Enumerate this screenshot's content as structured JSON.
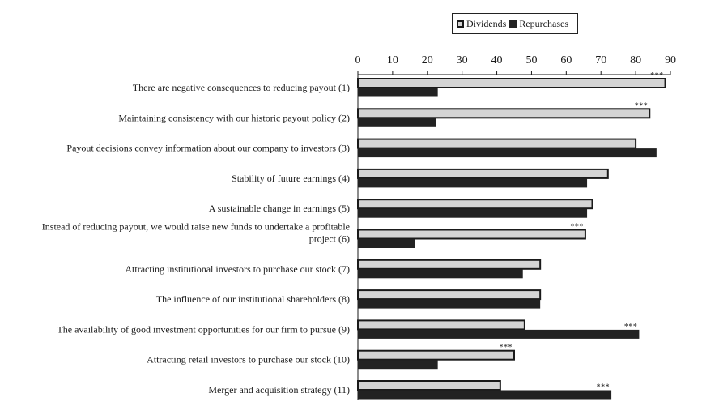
{
  "chart_data": {
    "type": "bar",
    "orientation": "horizontal",
    "xlim": [
      0,
      90
    ],
    "xticks": [
      0,
      10,
      20,
      30,
      40,
      50,
      60,
      70,
      80,
      90
    ],
    "legend_position": "top-right",
    "categories": [
      [
        "There are negative consequences to reducing payout (1)"
      ],
      [
        "Maintaining consistency with our historic payout policy (2)"
      ],
      [
        "Payout decisions convey information about our company to investors (3)"
      ],
      [
        "Stability of future earnings (4)"
      ],
      [
        "A sustainable change in earnings (5)"
      ],
      [
        "Instead of reducing payout, we would raise new funds to undertake a profitable",
        "project (6)"
      ],
      [
        "Attracting institutional investors to purchase our stock (7)"
      ],
      [
        "The influence of our institutional shareholders (8)"
      ],
      [
        "The availability of good investment opportunities for our firm to pursue (9)"
      ],
      [
        "Attracting retail investors to purchase our stock (10)"
      ],
      [
        "Merger and acquisition strategy (11)"
      ]
    ],
    "series": [
      {
        "name": "Dividends",
        "color": "#d4d4d4",
        "outline": "#1a1a1a",
        "values": [
          88.5,
          84,
          80,
          72,
          67.5,
          65.5,
          52.5,
          52.5,
          48,
          45,
          41
        ]
      },
      {
        "name": "Repurchases",
        "color": "#222222",
        "values": [
          23,
          22.5,
          86,
          66,
          66,
          16.5,
          47.5,
          52.5,
          81,
          23,
          73
        ]
      }
    ],
    "significance": [
      {
        "index": 0,
        "series": 0,
        "label": "***"
      },
      {
        "index": 1,
        "series": 0,
        "label": "***"
      },
      {
        "index": 5,
        "series": 0,
        "label": "***"
      },
      {
        "index": 8,
        "series": 1,
        "label": "***"
      },
      {
        "index": 9,
        "series": 0,
        "label": "***"
      },
      {
        "index": 10,
        "series": 1,
        "label": "***"
      }
    ]
  }
}
